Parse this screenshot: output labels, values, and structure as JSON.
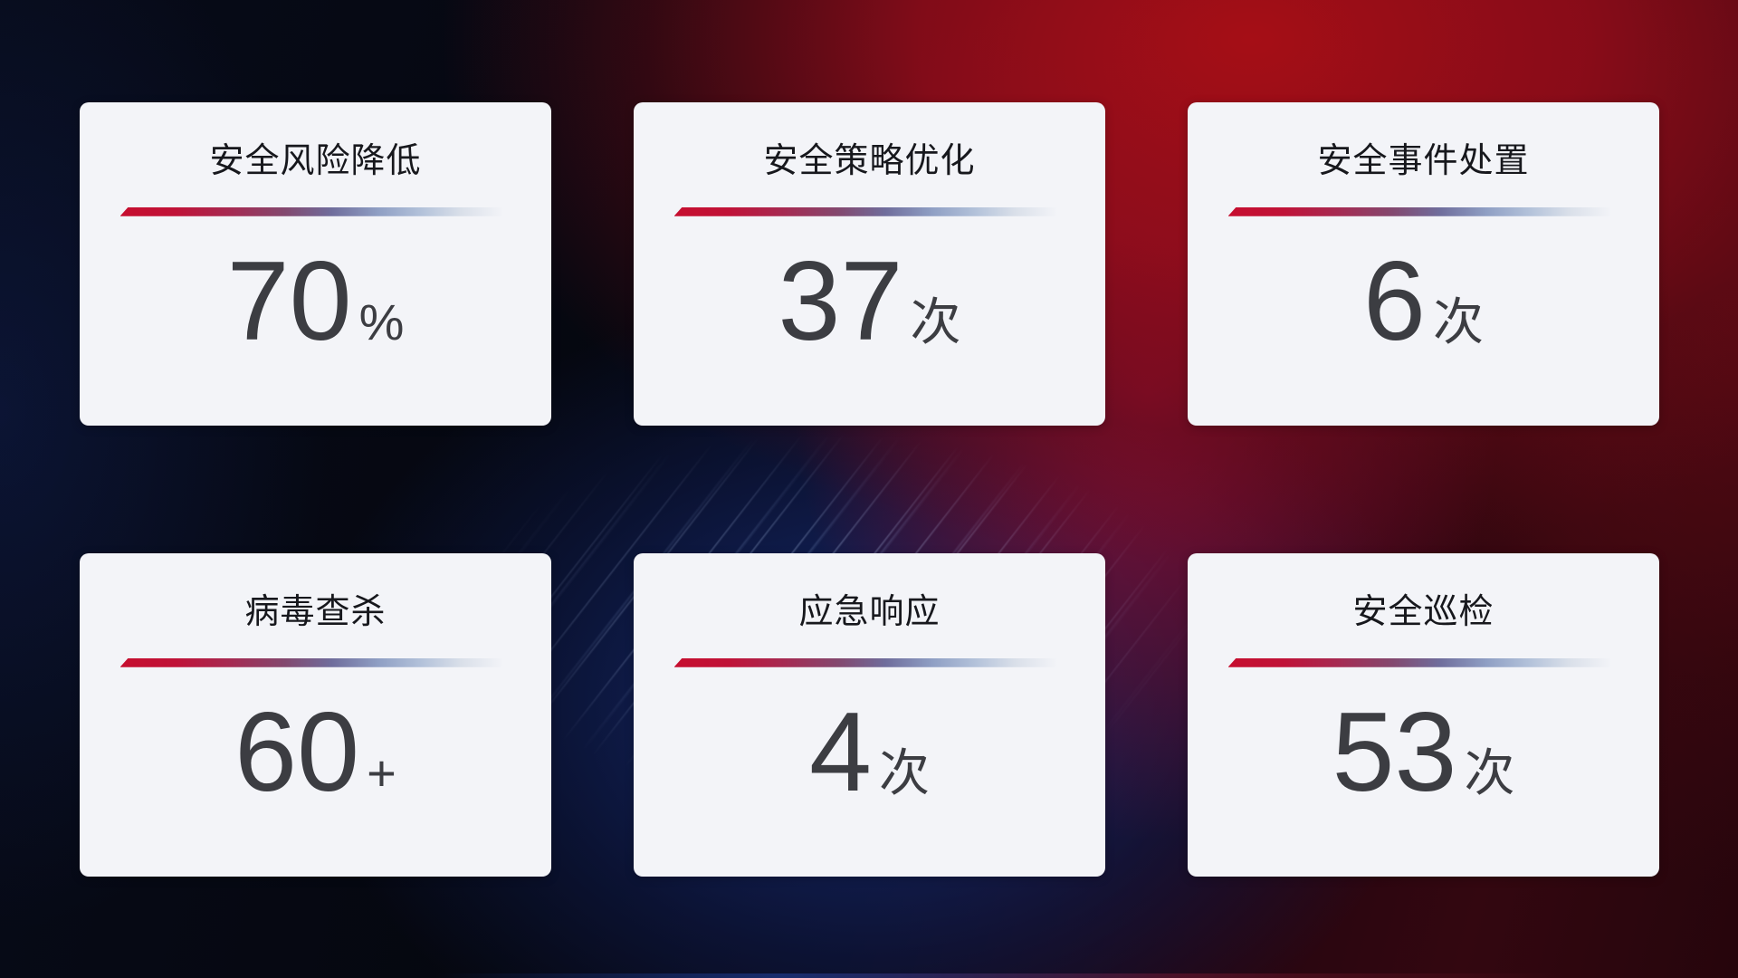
{
  "cards": [
    {
      "title": "安全风险降低",
      "value": "70",
      "unit": "%"
    },
    {
      "title": "安全策略优化",
      "value": "37",
      "unit": "次"
    },
    {
      "title": "安全事件处置",
      "value": "6",
      "unit": "次"
    },
    {
      "title": "病毒查杀",
      "value": "60",
      "unit": "+"
    },
    {
      "title": "应急响应",
      "value": "4",
      "unit": "次"
    },
    {
      "title": "安全巡检",
      "value": "53",
      "unit": "次"
    }
  ],
  "theme": {
    "card_background": "#f3f4f8",
    "title_color": "#17181d",
    "value_color": "#3c3d42",
    "divider_gradient_start": "#c60e2f",
    "divider_gradient_mid": "#6f6d9c",
    "divider_gradient_end": "#d9dfe9",
    "background_red": "#a80e16",
    "background_crimson": "#a5103a",
    "background_blue": "#162c74",
    "background_base": "#05060d"
  }
}
